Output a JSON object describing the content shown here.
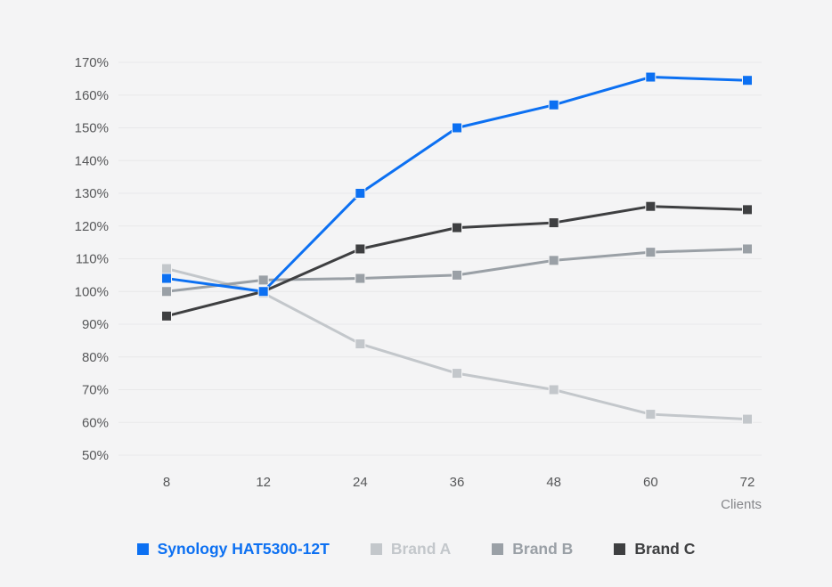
{
  "chart_data": {
    "type": "line",
    "title": "",
    "xlabel": "Clients",
    "ylabel": "",
    "categories": [
      "8",
      "12",
      "24",
      "36",
      "48",
      "60",
      "72"
    ],
    "ylim": [
      50,
      170
    ],
    "grid": true,
    "marker": "square",
    "legend_position": "bottom",
    "y_ticks": [
      {
        "value": 170,
        "label": "170%"
      },
      {
        "value": 160,
        "label": "160%"
      },
      {
        "value": 150,
        "label": "150%"
      },
      {
        "value": 140,
        "label": "140%"
      },
      {
        "value": 130,
        "label": "130%"
      },
      {
        "value": 120,
        "label": "120%"
      },
      {
        "value": 110,
        "label": "110%"
      },
      {
        "value": 100,
        "label": "100%"
      },
      {
        "value": 90,
        "label": "90%"
      },
      {
        "value": 80,
        "label": "80%"
      },
      {
        "value": 70,
        "label": "70%"
      },
      {
        "value": 60,
        "label": "60%"
      },
      {
        "value": 50,
        "label": "50%"
      }
    ],
    "series": [
      {
        "name": "Synology HAT5300-12T",
        "color": "#0c70f2",
        "values": [
          104,
          100,
          130,
          150,
          157,
          165.5,
          164.5
        ]
      },
      {
        "name": "Brand A",
        "color": "#c3c7cb",
        "values": [
          107,
          99.5,
          84,
          75,
          70,
          62.5,
          61
        ]
      },
      {
        "name": "Brand B",
        "color": "#9aa0a6",
        "values": [
          100,
          103.5,
          104,
          105,
          109.5,
          112,
          113
        ]
      },
      {
        "name": "Brand C",
        "color": "#3e3f41",
        "values": [
          92.5,
          100,
          113,
          119.5,
          121,
          126,
          125
        ]
      }
    ]
  },
  "colors": {
    "background": "#f4f4f5",
    "gridline": "#e8e8ea",
    "axis_text": "#565759",
    "x_unit_text": "#85868a",
    "synology_blue": "#0c70f2",
    "brand_a_gray": "#c3c7cb",
    "brand_b_gray": "#9aa0a6",
    "brand_c_gray": "#3e3f41"
  }
}
